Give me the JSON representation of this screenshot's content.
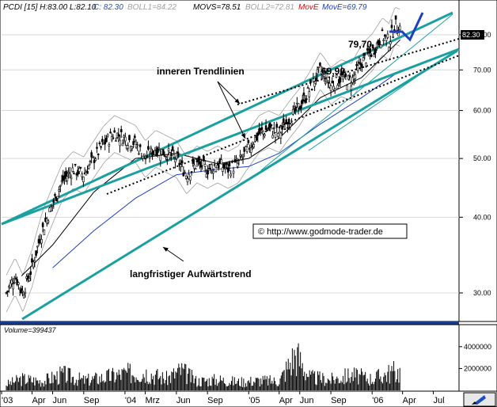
{
  "header": {
    "symbol": "PCDI [15] H:83.00 L:82.10",
    "close": "C: 82.30",
    "boll1": "BOLL1=84.22",
    "movs": "MOVS=78.51",
    "boll2": "BOLL2=72.81",
    "move": "MovE",
    "move2": "MovE=69.79"
  },
  "chart_data": {
    "type": "candlestick",
    "last_price_label": "82.30",
    "volume_label": "Volume=399437",
    "y_scale": "log",
    "ylim": [
      27,
      87
    ],
    "y_ticks": [
      30,
      40,
      50,
      60,
      70,
      80
    ],
    "y_tick_labels": [
      "30.00",
      "40.00",
      "50.00",
      "60.00",
      "70.00",
      "80.00"
    ],
    "volume_ylim": [
      0,
      5000000
    ],
    "volume_ticks": [
      2000000,
      4000000
    ],
    "volume_tick_labels": [
      "2000000",
      "4000000"
    ],
    "x_tick_labels": [
      "'03",
      "Apr",
      "Jun",
      "Sep",
      "'04",
      "Mrz",
      "Jun",
      "Sep",
      "'05",
      "Apr",
      "Jun",
      "Sep",
      "'06",
      "Apr",
      "Jul"
    ],
    "x_ticks": [
      "2003-01-01",
      "2003-04-01",
      "2003-06-01",
      "2003-09-01",
      "2004-01-01",
      "2004-03-01",
      "2004-06-01",
      "2004-09-01",
      "2005-01-01",
      "2005-04-01",
      "2005-06-01",
      "2005-09-01",
      "2006-01-01",
      "2006-04-01",
      "2006-07-01"
    ],
    "xlim": [
      "2003-01-01",
      "2006-09-15"
    ],
    "close_path": [
      [
        "2003-01-15",
        30
      ],
      [
        "2003-02-10",
        32
      ],
      [
        "2003-03-05",
        30
      ],
      [
        "2003-04-01",
        33
      ],
      [
        "2003-05-01",
        38
      ],
      [
        "2003-06-01",
        42
      ],
      [
        "2003-07-01",
        46
      ],
      [
        "2003-08-01",
        48
      ],
      [
        "2003-09-01",
        47
      ],
      [
        "2003-10-01",
        50
      ],
      [
        "2003-11-01",
        53
      ],
      [
        "2003-12-01",
        55
      ],
      [
        "2004-01-01",
        54
      ],
      [
        "2004-02-01",
        53
      ],
      [
        "2004-03-01",
        50
      ],
      [
        "2004-04-01",
        52
      ],
      [
        "2004-05-01",
        51
      ],
      [
        "2004-06-01",
        50
      ],
      [
        "2004-07-01",
        47
      ],
      [
        "2004-08-01",
        49
      ],
      [
        "2004-09-01",
        48
      ],
      [
        "2004-10-01",
        49
      ],
      [
        "2004-11-01",
        48
      ],
      [
        "2004-12-01",
        49
      ],
      [
        "2005-01-01",
        52
      ],
      [
        "2005-02-01",
        55
      ],
      [
        "2005-03-01",
        56
      ],
      [
        "2005-04-01",
        55
      ],
      [
        "2005-05-01",
        58
      ],
      [
        "2005-06-01",
        61
      ],
      [
        "2005-07-01",
        65
      ],
      [
        "2005-08-01",
        69.9
      ],
      [
        "2005-09-01",
        66
      ],
      [
        "2005-10-01",
        68
      ],
      [
        "2005-11-01",
        67
      ],
      [
        "2005-12-01",
        72
      ],
      [
        "2006-01-01",
        75
      ],
      [
        "2006-02-01",
        79.7
      ],
      [
        "2006-02-20",
        78
      ],
      [
        "2006-03-10",
        83
      ],
      [
        "2006-03-25",
        82.3
      ]
    ],
    "moving_averages": [
      {
        "name": "MovS",
        "color": "#000000",
        "points": [
          [
            "2003-03-01",
            32
          ],
          [
            "2003-06-01",
            36
          ],
          [
            "2003-10-01",
            44
          ],
          [
            "2004-02-01",
            50
          ],
          [
            "2004-06-01",
            51
          ],
          [
            "2004-10-01",
            49
          ],
          [
            "2005-01-01",
            50
          ],
          [
            "2005-04-01",
            54
          ],
          [
            "2005-08-01",
            63
          ],
          [
            "2005-12-01",
            68
          ],
          [
            "2006-03-25",
            78.5
          ]
        ]
      },
      {
        "name": "MovE",
        "color": "#1e3fbf",
        "points": [
          [
            "2003-06-01",
            33
          ],
          [
            "2003-10-01",
            38
          ],
          [
            "2004-02-01",
            43
          ],
          [
            "2004-06-01",
            47
          ],
          [
            "2004-10-01",
            48
          ],
          [
            "2005-01-01",
            48.5
          ],
          [
            "2005-04-01",
            51
          ],
          [
            "2005-08-01",
            57
          ],
          [
            "2005-12-01",
            63
          ],
          [
            "2006-03-25",
            69.8
          ]
        ]
      }
    ],
    "volume_series": [
      [
        "2003-01-15",
        800000
      ],
      [
        "2003-03-01",
        1500000
      ],
      [
        "2003-05-01",
        1200000
      ],
      [
        "2003-07-01",
        2100000
      ],
      [
        "2003-09-01",
        1300000
      ],
      [
        "2003-11-01",
        1700000
      ],
      [
        "2004-01-01",
        2200000
      ],
      [
        "2004-03-01",
        2400000
      ],
      [
        "2004-05-01",
        1500000
      ],
      [
        "2004-06-15",
        2600000
      ],
      [
        "2004-08-01",
        1200000
      ],
      [
        "2004-10-01",
        1400000
      ],
      [
        "2004-12-01",
        1100000
      ],
      [
        "2005-02-01",
        1300000
      ],
      [
        "2005-04-01",
        1200000
      ],
      [
        "2005-05-20",
        4800000
      ],
      [
        "2005-07-01",
        1700000
      ],
      [
        "2005-09-01",
        1400000
      ],
      [
        "2005-11-01",
        2000000
      ],
      [
        "2006-01-01",
        1500000
      ],
      [
        "2006-03-01",
        2400000
      ]
    ],
    "annotations": {
      "inner": "inneren Trendlinien",
      "longterm": "langfristiger Aufwärtstrend",
      "v7970": "79,70",
      "v6990": "69,90",
      "copyright": "© http://www.godmode-trader.de"
    },
    "colors": {
      "channel": "#1aa0a0",
      "candle": "#000000",
      "band": "#a0a0a0",
      "arrow": "#1e3fbf"
    }
  }
}
